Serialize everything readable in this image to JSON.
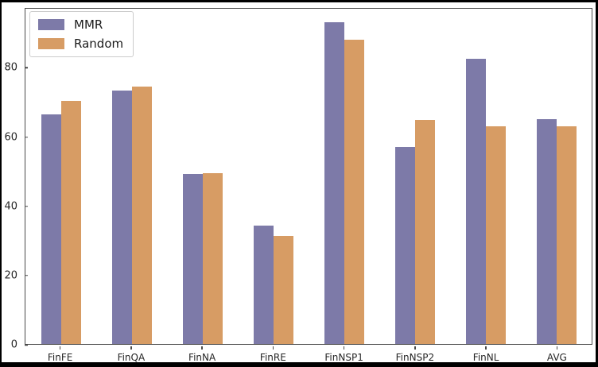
{
  "chart_data": {
    "type": "bar",
    "title": "",
    "xlabel": "",
    "ylabel": "",
    "categories": [
      "FinFE",
      "FinQA",
      "FinNA",
      "FinRE",
      "FinNSP1",
      "FinNSP2",
      "FinNL",
      "AVG"
    ],
    "series": [
      {
        "name": "MMR",
        "color": "#7d7aa8",
        "values": [
          66.4,
          73.2,
          49.1,
          34.2,
          92.9,
          56.9,
          82.3,
          65.0
        ]
      },
      {
        "name": "Random",
        "color": "#d79c64",
        "values": [
          70.2,
          74.4,
          49.4,
          31.2,
          87.8,
          64.7,
          62.8,
          62.9
        ]
      }
    ],
    "yticks": [
      0,
      20,
      40,
      60,
      80
    ],
    "ylim": [
      0,
      97.3
    ],
    "grid": false,
    "legend_position": "upper-left",
    "background_color": "#ffffff",
    "spine_color": "#4a4a4a",
    "outer_border_color": "#000000"
  }
}
